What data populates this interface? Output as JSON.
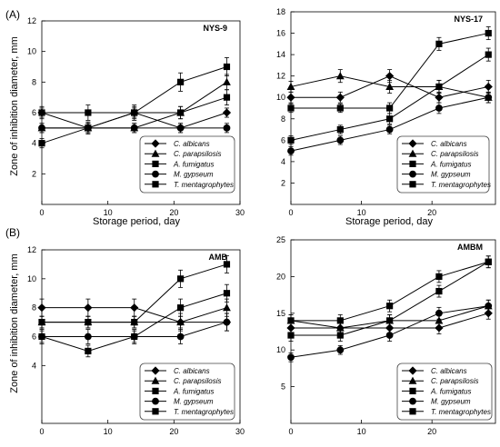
{
  "figure": {
    "panel_labels": [
      "(A)",
      "(B)"
    ],
    "ylabel": "Zone of inhibition diameter, mm",
    "xlabel": "Storage period, day"
  },
  "legend_series": [
    "C. albicans",
    "C. parapsilosis",
    "A. fumigatus",
    "M. gypseum",
    "T. mentagrophytes"
  ],
  "marker_shapes": [
    "diamond",
    "triangle",
    "square",
    "circle",
    "square"
  ],
  "chart_data": [
    {
      "type": "line",
      "title": "NYS-9",
      "xlim": [
        0,
        30
      ],
      "xticks": [
        0,
        10,
        20,
        30
      ],
      "ylim": [
        0,
        12
      ],
      "yticks": [
        2,
        4,
        6,
        8,
        10,
        12
      ],
      "x": [
        0,
        7,
        14,
        21,
        28
      ],
      "series": [
        {
          "name": "C. albicans",
          "values": [
            6,
            5,
            6,
            5,
            6
          ],
          "errors": [
            0.3,
            0.3,
            0.3,
            0.3,
            0.3
          ]
        },
        {
          "name": "C. parapsilosis",
          "values": [
            5,
            5,
            5,
            6,
            8
          ],
          "errors": [
            0.3,
            0.3,
            0.3,
            0.4,
            0.5
          ]
        },
        {
          "name": "A. fumigatus",
          "values": [
            4,
            5,
            6,
            6,
            7
          ],
          "errors": [
            0.3,
            0.4,
            0.4,
            0.4,
            0.5
          ]
        },
        {
          "name": "M. gypseum",
          "values": [
            5,
            5,
            5,
            5,
            5
          ],
          "errors": [
            0.3,
            0.3,
            0.3,
            0.3,
            0.3
          ]
        },
        {
          "name": "T. mentagrophytes",
          "values": [
            6,
            6,
            6,
            8,
            9
          ],
          "errors": [
            0.4,
            0.5,
            0.5,
            0.6,
            0.6
          ]
        }
      ]
    },
    {
      "type": "line",
      "title": "NYS-17",
      "xlim": [
        0,
        29
      ],
      "xticks": [
        0,
        10,
        20
      ],
      "ylim": [
        0,
        18
      ],
      "yticks": [
        2,
        4,
        6,
        8,
        10,
        12,
        14,
        16,
        18
      ],
      "x": [
        0,
        7,
        14,
        21,
        28
      ],
      "series": [
        {
          "name": "C. albicans",
          "values": [
            10,
            10,
            12,
            10,
            11
          ],
          "errors": [
            0.5,
            0.5,
            0.6,
            0.5,
            0.6
          ]
        },
        {
          "name": "C. parapsilosis",
          "values": [
            11,
            12,
            11,
            11,
            10
          ],
          "errors": [
            0.5,
            0.6,
            0.6,
            0.6,
            0.5
          ]
        },
        {
          "name": "A. fumigatus",
          "values": [
            6,
            7,
            8,
            11,
            14
          ],
          "errors": [
            0.4,
            0.4,
            0.5,
            0.6,
            0.6
          ]
        },
        {
          "name": "M. gypseum",
          "values": [
            5,
            6,
            7,
            9,
            10
          ],
          "errors": [
            0.4,
            0.4,
            0.4,
            0.5,
            0.5
          ]
        },
        {
          "name": "T. mentagrophytes",
          "values": [
            9,
            9,
            9,
            15,
            16
          ],
          "errors": [
            0.4,
            0.4,
            0.5,
            0.6,
            0.6
          ]
        }
      ]
    },
    {
      "type": "line",
      "title": "AMB",
      "xlim": [
        0,
        30
      ],
      "xticks": [
        0,
        10,
        20,
        30
      ],
      "ylim": [
        0,
        12
      ],
      "yticks": [
        4,
        6,
        8,
        10,
        12
      ],
      "x": [
        0,
        7,
        14,
        21,
        28
      ],
      "series": [
        {
          "name": "C. albicans",
          "values": [
            8,
            8,
            8,
            7,
            7
          ],
          "errors": [
            0.6,
            0.6,
            0.6,
            0.6,
            0.6
          ]
        },
        {
          "name": "C. parapsilosis",
          "values": [
            7,
            7,
            7,
            7,
            8
          ],
          "errors": [
            0.4,
            0.4,
            0.4,
            0.4,
            0.6
          ]
        },
        {
          "name": "A. fumigatus",
          "values": [
            6,
            5,
            6,
            8,
            9
          ],
          "errors": [
            0.4,
            0.4,
            0.4,
            0.6,
            0.6
          ]
        },
        {
          "name": "M. gypseum",
          "values": [
            6,
            6,
            6,
            6,
            7
          ],
          "errors": [
            0.5,
            0.5,
            0.5,
            0.5,
            0.6
          ]
        },
        {
          "name": "T. mentagrophytes",
          "values": [
            7,
            7,
            7,
            10,
            11
          ],
          "errors": [
            0.4,
            0.4,
            0.4,
            0.6,
            0.6
          ]
        }
      ]
    },
    {
      "type": "line",
      "title": "AMBM",
      "xlim": [
        0,
        29
      ],
      "xticks": [
        0,
        10,
        20
      ],
      "ylim": [
        0,
        25
      ],
      "yticks": [
        5,
        10,
        15,
        20,
        25
      ],
      "x": [
        0,
        7,
        14,
        21,
        28
      ],
      "series": [
        {
          "name": "C. albicans",
          "values": [
            13,
            13,
            13,
            13,
            15
          ],
          "errors": [
            0.8,
            0.8,
            0.8,
            0.8,
            0.8
          ]
        },
        {
          "name": "C. parapsilosis",
          "values": [
            14,
            13,
            14,
            14,
            16
          ],
          "errors": [
            0.8,
            0.8,
            0.8,
            0.8,
            0.8
          ]
        },
        {
          "name": "A. fumigatus",
          "values": [
            12,
            12,
            14,
            18,
            22
          ],
          "errors": [
            0.8,
            0.8,
            0.8,
            0.8,
            0.8
          ]
        },
        {
          "name": "M. gypseum",
          "values": [
            9,
            10,
            12,
            15,
            16
          ],
          "errors": [
            0.6,
            0.6,
            0.8,
            0.8,
            0.8
          ]
        },
        {
          "name": "T. mentagrophytes",
          "values": [
            14,
            14,
            16,
            20,
            22
          ],
          "errors": [
            0.8,
            0.8,
            0.8,
            0.8,
            0.8
          ]
        }
      ]
    }
  ]
}
